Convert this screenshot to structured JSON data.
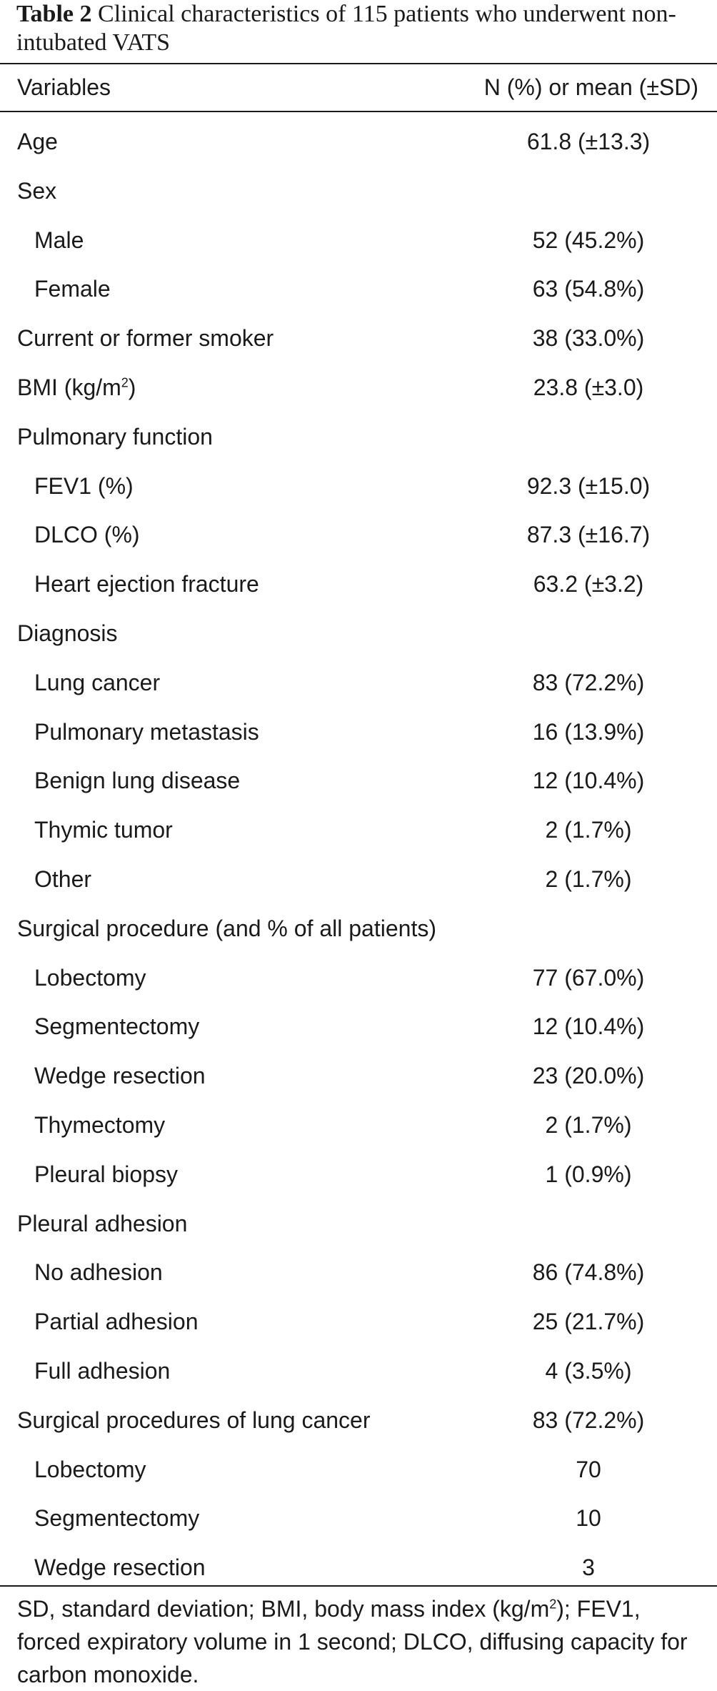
{
  "table": {
    "number_label": "Table 2",
    "title": "Clinical characteristics of 115 patients who underwent non-intubated VATS",
    "header_left": "Variables",
    "header_right": "N (%) or mean (±SD)",
    "rows": [
      {
        "label": "Age",
        "value": "61.8 (±13.3)",
        "indent": false
      },
      {
        "label": "Sex",
        "value": "",
        "indent": false
      },
      {
        "label": "Male",
        "value": "52 (45.2%)",
        "indent": true
      },
      {
        "label": "Female",
        "value": "63 (54.8%)",
        "indent": true
      },
      {
        "label": "Current or former smoker",
        "value": "38 (33.0%)",
        "indent": false
      },
      {
        "label": "BMI (kg/m",
        "label_sup": "2",
        "label_after": ")",
        "value": "23.8 (±3.0)",
        "indent": false
      },
      {
        "label": "Pulmonary function",
        "value": "",
        "indent": false
      },
      {
        "label": "FEV1 (%)",
        "value": "92.3 (±15.0)",
        "indent": true
      },
      {
        "label": "DLCO (%)",
        "value": "87.3 (±16.7)",
        "indent": true
      },
      {
        "label": "Heart ejection fracture",
        "value": "63.2 (±3.2)",
        "indent": true
      },
      {
        "label": "Diagnosis",
        "value": "",
        "indent": false
      },
      {
        "label": "Lung cancer",
        "value": "83 (72.2%)",
        "indent": true
      },
      {
        "label": "Pulmonary metastasis",
        "value": "16 (13.9%)",
        "indent": true
      },
      {
        "label": "Benign lung disease",
        "value": "12 (10.4%)",
        "indent": true
      },
      {
        "label": "Thymic tumor",
        "value": "2 (1.7%)",
        "indent": true
      },
      {
        "label": "Other",
        "value": "2 (1.7%)",
        "indent": true
      },
      {
        "label": "Surgical procedure (and % of all patients)",
        "value": "",
        "indent": false
      },
      {
        "label": "Lobectomy",
        "value": "77 (67.0%)",
        "indent": true
      },
      {
        "label": "Segmentectomy",
        "value": "12 (10.4%)",
        "indent": true
      },
      {
        "label": "Wedge resection",
        "value": "23 (20.0%)",
        "indent": true
      },
      {
        "label": "Thymectomy",
        "value": "2 (1.7%)",
        "indent": true
      },
      {
        "label": "Pleural biopsy",
        "value": "1 (0.9%)",
        "indent": true
      },
      {
        "label": "Pleural adhesion",
        "value": "",
        "indent": false
      },
      {
        "label": "No adhesion",
        "value": "86 (74.8%)",
        "indent": true
      },
      {
        "label": "Partial adhesion",
        "value": "25 (21.7%)",
        "indent": true
      },
      {
        "label": "Full adhesion",
        "value": "4 (3.5%)",
        "indent": true
      },
      {
        "label": "Surgical procedures of lung cancer",
        "value": "83 (72.2%)",
        "indent": false
      },
      {
        "label": "Lobectomy",
        "value": "70",
        "indent": true
      },
      {
        "label": "Segmentectomy",
        "value": "10",
        "indent": true
      },
      {
        "label": "Wedge resection",
        "value": "3",
        "indent": true
      }
    ],
    "footnote_before": "SD, standard deviation; BMI, body mass index (kg/m",
    "footnote_sup": "2",
    "footnote_after": "); FEV1, forced expiratory volume in 1 second; DLCO, diffusing capacity for carbon monoxide."
  }
}
